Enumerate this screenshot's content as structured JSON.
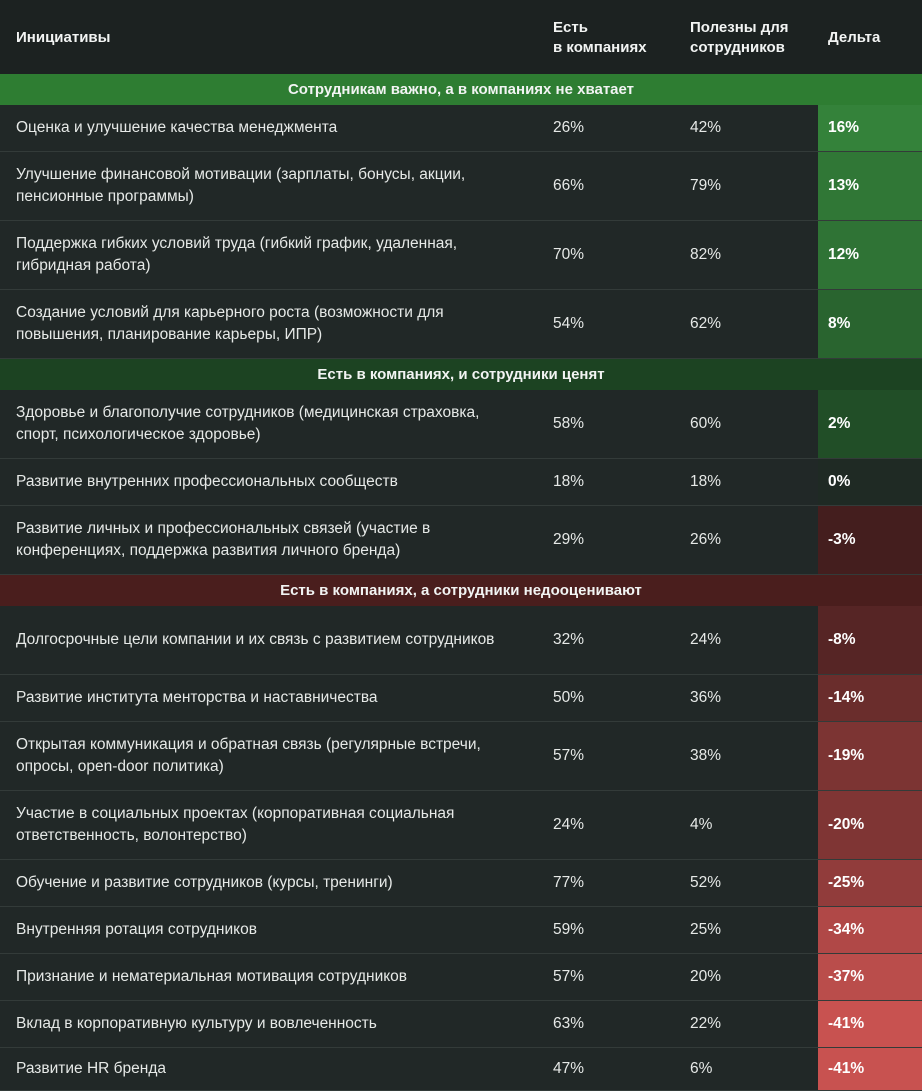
{
  "header": {
    "col_initiatives": "Инициативы",
    "col_present_l1": "Есть",
    "col_present_l2": "в компаниях",
    "col_useful_l1": "Полезны для",
    "col_useful_l2": "сотрудников",
    "col_delta": "Дельта"
  },
  "chart_data": {
    "type": "table",
    "columns": [
      "Инициативы",
      "Есть в компаниях",
      "Полезны для сотрудников",
      "Дельта"
    ],
    "sections": [
      {
        "title": "Сотрудникам важно, а в компаниях не хватает",
        "color": "#2e7d32",
        "rows": [
          {
            "name": "Оценка и улучшение качества менеджмента",
            "present": "26%",
            "useful": "42%",
            "delta": "16%",
            "delta_value": 16
          },
          {
            "name": "Улучшение финансовой мотивации (зарплаты, бонусы, акции, пенсионные программы)",
            "present": "66%",
            "useful": "79%",
            "delta": "13%",
            "delta_value": 13
          },
          {
            "name": "Поддержка гибких условий труда (гибкий график, удаленная, гибридная работа)",
            "present": "70%",
            "useful": "82%",
            "delta": "12%",
            "delta_value": 12
          },
          {
            "name": "Создание условий для карьерного роста (возможности для повышения, планирование карьеры, ИПР)",
            "present": "54%",
            "useful": "62%",
            "delta": "8%",
            "delta_value": 8
          }
        ]
      },
      {
        "title": "Есть в компаниях, и сотрудники ценят",
        "color": "#1c4322",
        "rows": [
          {
            "name": "Здоровье и благополучие сотрудников (медицинская страховка, спорт, психологическое здоровье)",
            "present": "58%",
            "useful": "60%",
            "delta": "2%",
            "delta_value": 2
          },
          {
            "name": "Развитие внутренних профессиональных сообществ",
            "present": "18%",
            "useful": "18%",
            "delta": "0%",
            "delta_value": 0
          },
          {
            "name": "Развитие личных и профессиональных связей (участие в конференциях, поддержка развития личного бренда)",
            "present": "29%",
            "useful": "26%",
            "delta": "-3%",
            "delta_value": -3
          }
        ]
      },
      {
        "title": "Есть в компаниях, а сотрудники недооценивают",
        "color": "#4a1e1d",
        "rows": [
          {
            "name": "Долгосрочные цели компании и их связь с развитием сотрудников",
            "present": "32%",
            "useful": "24%",
            "delta": "-8%",
            "delta_value": -8
          },
          {
            "name": "Развитие института менторства и наставничества",
            "present": "50%",
            "useful": "36%",
            "delta": "-14%",
            "delta_value": -14
          },
          {
            "name": "Открытая коммуникация и обратная связь (регулярные встречи, опросы, open-door политика)",
            "present": "57%",
            "useful": "38%",
            "delta": "-19%",
            "delta_value": -19
          },
          {
            "name": "Участие в социальных проектах (корпоративная социальная ответственность, волонтерство)",
            "present": "24%",
            "useful": "4%",
            "delta": "-20%",
            "delta_value": -20
          },
          {
            "name": "Обучение и развитие сотрудников (курсы, тренинги)",
            "present": "77%",
            "useful": "52%",
            "delta": "-25%",
            "delta_value": -25
          },
          {
            "name": "Внутренняя ротация сотрудников",
            "present": "59%",
            "useful": "25%",
            "delta": "-34%",
            "delta_value": -34
          },
          {
            "name": "Признание и нематериальная мотивация сотрудников",
            "present": "57%",
            "useful": "20%",
            "delta": "-37%",
            "delta_value": -37
          },
          {
            "name": "Вклад в корпоративную культуру и вовлеченность",
            "present": "63%",
            "useful": "22%",
            "delta": "-41%",
            "delta_value": -41
          },
          {
            "name": "Развитие HR бренда",
            "present": "47%",
            "useful": "6%",
            "delta": "-41%",
            "delta_value": -41
          }
        ]
      }
    ]
  }
}
